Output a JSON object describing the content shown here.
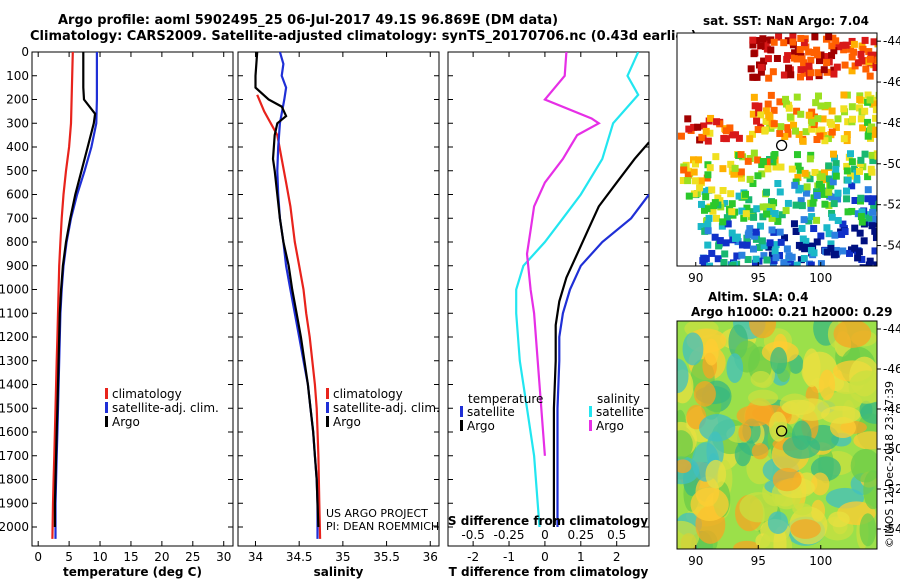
{
  "header": {
    "line1": "Argo profile: aoml 5902495_25 06-Jul-2017 49.1S 96.869E (DM data)",
    "line2": "Climatology: CARS2009. Satellite-adjusted climatology: synTS_20170706.nc (0.43d earlier)"
  },
  "colors": {
    "climatology": "#e8231c",
    "satellite": "#1f2fd6",
    "argo": "#000000",
    "satellite_s": "#22e6f0",
    "argo_s": "#e62fe6"
  },
  "sst_panel": {
    "title": "sat. SST: NaN Argo: 7.04",
    "yticks": [
      "-44",
      "-46",
      "-48",
      "-50",
      "-52",
      "-54"
    ],
    "xticks": [
      "90",
      "95",
      "100"
    ]
  },
  "sla_panel": {
    "title1": "Altim. SLA: 0.4",
    "title2": "Argo h1000: 0.21 h2000: 0.29",
    "yticks": [
      "-44",
      "-46",
      "-48",
      "-50",
      "-52",
      "-54"
    ],
    "xticks": [
      "90",
      "95",
      "100"
    ]
  },
  "credit": "©IMOS 12-Dec-2018 23:37:39",
  "pi_text": {
    "line1": "US ARGO PROJECT",
    "line2": "PI: DEAN ROEMMICH"
  },
  "chart_data": [
    {
      "type": "line",
      "title": "",
      "xlabel": "temperature (deg C)",
      "ylabel": "",
      "xlim": [
        -1,
        31.5
      ],
      "ylim": [
        2080,
        0
      ],
      "xticks": [
        0,
        5,
        10,
        15,
        20,
        25,
        30
      ],
      "yticks": [
        0,
        100,
        200,
        300,
        400,
        500,
        600,
        700,
        800,
        900,
        1000,
        1100,
        1200,
        1300,
        1400,
        1500,
        1600,
        1700,
        1800,
        1900,
        2000
      ],
      "legend": [
        "climatology",
        "satellite-adj. clim.",
        "Argo"
      ],
      "series": [
        {
          "name": "climatology",
          "color": "#e8231c",
          "points": [
            [
              5.6,
              0
            ],
            [
              5.5,
              100
            ],
            [
              5.4,
              200
            ],
            [
              5.3,
              300
            ],
            [
              5.0,
              400
            ],
            [
              4.5,
              500
            ],
            [
              4.1,
              600
            ],
            [
              3.8,
              700
            ],
            [
              3.6,
              800
            ],
            [
              3.4,
              900
            ],
            [
              3.3,
              1000
            ],
            [
              3.2,
              1100
            ],
            [
              3.1,
              1200
            ],
            [
              3.0,
              1300
            ],
            [
              2.9,
              1400
            ],
            [
              2.8,
              1500
            ],
            [
              2.7,
              1600
            ],
            [
              2.6,
              1700
            ],
            [
              2.5,
              1800
            ],
            [
              2.4,
              1900
            ],
            [
              2.3,
              2050
            ]
          ]
        },
        {
          "name": "satellite-adj. clim.",
          "color": "#1f2fd6",
          "points": [
            [
              9.5,
              0
            ],
            [
              9.5,
              100
            ],
            [
              9.5,
              200
            ],
            [
              9.4,
              300
            ],
            [
              8.6,
              400
            ],
            [
              7.5,
              500
            ],
            [
              6.3,
              600
            ],
            [
              5.3,
              700
            ],
            [
              4.6,
              800
            ],
            [
              4.1,
              900
            ],
            [
              3.8,
              1000
            ],
            [
              3.6,
              1100
            ],
            [
              3.5,
              1200
            ],
            [
              3.4,
              1300
            ],
            [
              3.3,
              1400
            ],
            [
              3.2,
              1500
            ],
            [
              3.1,
              1600
            ],
            [
              3.0,
              1700
            ],
            [
              2.9,
              1800
            ],
            [
              2.8,
              1900
            ],
            [
              2.8,
              2050
            ]
          ]
        },
        {
          "name": "Argo",
          "color": "#000000",
          "points": [
            [
              7.3,
              0
            ],
            [
              7.3,
              150
            ],
            [
              7.4,
              200
            ],
            [
              9.2,
              260
            ],
            [
              9.0,
              300
            ],
            [
              8.0,
              400
            ],
            [
              7.0,
              500
            ],
            [
              6.0,
              600
            ],
            [
              5.2,
              700
            ],
            [
              4.5,
              800
            ],
            [
              4.0,
              900
            ],
            [
              3.7,
              1000
            ],
            [
              3.5,
              1100
            ],
            [
              3.4,
              1200
            ],
            [
              3.3,
              1300
            ],
            [
              3.2,
              1400
            ],
            [
              3.1,
              1500
            ],
            [
              3.0,
              1600
            ],
            [
              2.9,
              1700
            ],
            [
              2.8,
              1800
            ],
            [
              2.7,
              1900
            ],
            [
              2.7,
              2000
            ]
          ]
        }
      ]
    },
    {
      "type": "line",
      "title": "",
      "xlabel": "salinity",
      "ylabel": "",
      "xlim": [
        33.8,
        36.1
      ],
      "ylim": [
        2080,
        0
      ],
      "xticks": [
        34,
        34.5,
        35,
        35.5,
        36
      ],
      "ytick_labels": false,
      "legend": [
        "climatology",
        "satellite-adj. clim.",
        "Argo"
      ],
      "series": [
        {
          "name": "climatology",
          "color": "#e8231c",
          "points": [
            [
              34.02,
              180
            ],
            [
              34.1,
              250
            ],
            [
              34.25,
              350
            ],
            [
              34.3,
              450
            ],
            [
              34.35,
              550
            ],
            [
              34.4,
              650
            ],
            [
              34.45,
              800
            ],
            [
              34.5,
              900
            ],
            [
              34.55,
              1000
            ],
            [
              34.58,
              1100
            ],
            [
              34.62,
              1200
            ],
            [
              34.65,
              1300
            ],
            [
              34.68,
              1400
            ],
            [
              34.7,
              1500
            ],
            [
              34.72,
              1700
            ],
            [
              34.73,
              1900
            ],
            [
              34.74,
              2050
            ]
          ]
        },
        {
          "name": "satellite-adj. clim.",
          "color": "#1f2fd6",
          "points": [
            [
              34.28,
              0
            ],
            [
              34.32,
              50
            ],
            [
              34.3,
              100
            ],
            [
              34.35,
              150
            ],
            [
              34.33,
              200
            ],
            [
              34.28,
              300
            ],
            [
              34.26,
              400
            ],
            [
              34.25,
              500
            ],
            [
              34.26,
              600
            ],
            [
              34.28,
              700
            ],
            [
              34.32,
              800
            ],
            [
              34.35,
              900
            ],
            [
              34.4,
              1000
            ],
            [
              34.45,
              1100
            ],
            [
              34.5,
              1200
            ],
            [
              34.55,
              1300
            ],
            [
              34.6,
              1400
            ],
            [
              34.63,
              1500
            ],
            [
              34.66,
              1600
            ],
            [
              34.68,
              1700
            ],
            [
              34.7,
              1800
            ],
            [
              34.71,
              1900
            ],
            [
              34.71,
              2050
            ]
          ]
        },
        {
          "name": "Argo",
          "color": "#000000",
          "points": [
            [
              34.02,
              0
            ],
            [
              34.0,
              100
            ],
            [
              34.0,
              150
            ],
            [
              34.15,
              200
            ],
            [
              34.3,
              230
            ],
            [
              34.35,
              270
            ],
            [
              34.25,
              300
            ],
            [
              34.22,
              350
            ],
            [
              34.2,
              450
            ],
            [
              34.22,
              500
            ],
            [
              34.25,
              600
            ],
            [
              34.28,
              700
            ],
            [
              34.32,
              800
            ],
            [
              34.38,
              900
            ],
            [
              34.42,
              1000
            ],
            [
              34.47,
              1100
            ],
            [
              34.52,
              1200
            ],
            [
              34.56,
              1300
            ],
            [
              34.6,
              1400
            ],
            [
              34.63,
              1500
            ],
            [
              34.66,
              1600
            ],
            [
              34.68,
              1700
            ],
            [
              34.7,
              1800
            ],
            [
              34.71,
              1900
            ],
            [
              34.72,
              2000
            ]
          ]
        }
      ]
    },
    {
      "type": "line",
      "title": "",
      "xlabel": "T difference from climatology",
      "x2label": "S difference from climatology",
      "ylabel": "",
      "xlim": [
        -2.7,
        2.9
      ],
      "x2lim": [
        -0.675,
        0.725
      ],
      "ylim": [
        2080,
        0
      ],
      "xticks": [
        -2,
        -1,
        0,
        1,
        2
      ],
      "x2ticks": [
        -0.5,
        -0.25,
        0,
        0.25,
        0.5
      ],
      "x2tick_labels": [
        "-0.5",
        "-0.25",
        "0",
        "0.25",
        "0.5"
      ],
      "ytick_labels": false,
      "legend_temperature": {
        "title": "temperature",
        "entries": [
          "satellite",
          "Argo"
        ]
      },
      "legend_salinity": {
        "title": "salinity",
        "entries": [
          "satellite",
          "Argo"
        ]
      },
      "series": [
        {
          "name": "temperature satellite",
          "color": "#1f2fd6",
          "points": [
            [
              2.9,
              600
            ],
            [
              2.4,
              700
            ],
            [
              1.6,
              800
            ],
            [
              1.0,
              900
            ],
            [
              0.7,
              1000
            ],
            [
              0.5,
              1100
            ],
            [
              0.4,
              1200
            ],
            [
              0.4,
              1300
            ],
            [
              0.35,
              1500
            ],
            [
              0.35,
              1700
            ],
            [
              0.35,
              2000
            ]
          ]
        },
        {
          "name": "temperature Argo",
          "color": "#000000",
          "points": [
            [
              2.9,
              380
            ],
            [
              2.5,
              450
            ],
            [
              2.0,
              550
            ],
            [
              1.5,
              650
            ],
            [
              1.2,
              750
            ],
            [
              0.9,
              850
            ],
            [
              0.6,
              950
            ],
            [
              0.4,
              1050
            ],
            [
              0.3,
              1150
            ],
            [
              0.3,
              1300
            ],
            [
              0.25,
              1500
            ],
            [
              0.25,
              1700
            ],
            [
              0.25,
              2000
            ]
          ]
        },
        {
          "name": "salinity satellite",
          "color": "#22e6f0",
          "points": [
            [
              2.6,
              0
            ],
            [
              2.3,
              100
            ],
            [
              2.6,
              180
            ],
            [
              1.9,
              300
            ],
            [
              1.6,
              450
            ],
            [
              1.0,
              600
            ],
            [
              0.5,
              700
            ],
            [
              0.0,
              800
            ],
            [
              -0.6,
              900
            ],
            [
              -0.8,
              1000
            ],
            [
              -0.8,
              1100
            ],
            [
              -0.7,
              1300
            ],
            [
              -0.5,
              1500
            ],
            [
              -0.3,
              1700
            ],
            [
              -0.2,
              1900
            ],
            [
              -0.15,
              2000
            ]
          ]
        },
        {
          "name": "salinity Argo",
          "color": "#e62fe6",
          "points": [
            [
              0.6,
              0
            ],
            [
              0.55,
              100
            ],
            [
              0.0,
              200
            ],
            [
              1.3,
              280
            ],
            [
              1.5,
              300
            ],
            [
              0.9,
              350
            ],
            [
              0.7,
              400
            ],
            [
              0.5,
              450
            ],
            [
              0.0,
              550
            ],
            [
              -0.3,
              650
            ],
            [
              -0.4,
              750
            ],
            [
              -0.5,
              850
            ],
            [
              -0.4,
              1000
            ],
            [
              -0.3,
              1100
            ],
            [
              -0.2,
              1300
            ],
            [
              -0.1,
              1500
            ],
            [
              0.0,
              1700
            ]
          ]
        }
      ]
    }
  ]
}
